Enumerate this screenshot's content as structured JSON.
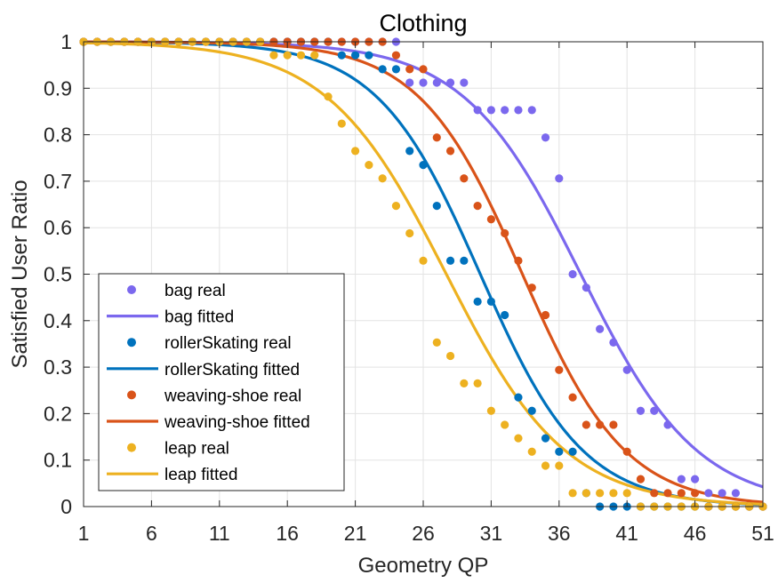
{
  "chart_data": {
    "type": "line",
    "title": "Clothing",
    "xlabel": "Geometry QP",
    "ylabel": "Satisfied User Ratio",
    "xlim": [
      1,
      51
    ],
    "ylim": [
      0,
      1
    ],
    "xticks": [
      1,
      6,
      11,
      16,
      21,
      26,
      31,
      36,
      41,
      46,
      51
    ],
    "xtick_labels": [
      "1",
      "6",
      "11",
      "16",
      "21",
      "26",
      "31",
      "36",
      "41",
      "46",
      "51"
    ],
    "yticks": [
      0,
      0.1,
      0.2,
      0.3,
      0.4,
      0.5,
      0.6,
      0.7,
      0.8,
      0.9,
      1
    ],
    "ytick_labels": [
      "0",
      "0.1",
      "0.2",
      "0.3",
      "0.4",
      "0.5",
      "0.6",
      "0.7",
      "0.8",
      "0.9",
      "1"
    ],
    "grid": true,
    "legend_position": "bottom-left",
    "series": [
      {
        "name": "bag",
        "real_label": "bag real",
        "fitted_label": "bag fitted",
        "color": "#7B68EE",
        "fit": {
          "mu": 37.6,
          "sigma": 4.3
        },
        "real": [
          [
            1,
            1
          ],
          [
            2,
            1
          ],
          [
            3,
            1
          ],
          [
            4,
            1
          ],
          [
            5,
            1
          ],
          [
            6,
            1
          ],
          [
            7,
            1
          ],
          [
            8,
            1
          ],
          [
            9,
            1
          ],
          [
            10,
            1
          ],
          [
            11,
            1
          ],
          [
            12,
            1
          ],
          [
            13,
            1
          ],
          [
            14,
            1
          ],
          [
            15,
            1
          ],
          [
            16,
            1
          ],
          [
            17,
            1
          ],
          [
            18,
            1
          ],
          [
            19,
            1
          ],
          [
            20,
            1
          ],
          [
            21,
            1
          ],
          [
            22,
            1
          ],
          [
            23,
            1
          ],
          [
            24,
            1
          ],
          [
            25,
            0.912
          ],
          [
            26,
            0.912
          ],
          [
            27,
            0.912
          ],
          [
            28,
            0.912
          ],
          [
            29,
            0.912
          ],
          [
            30,
            0.853
          ],
          [
            31,
            0.853
          ],
          [
            32,
            0.853
          ],
          [
            33,
            0.853
          ],
          [
            34,
            0.853
          ],
          [
            35,
            0.794
          ],
          [
            36,
            0.706
          ],
          [
            37,
            0.5
          ],
          [
            38,
            0.471
          ],
          [
            39,
            0.382
          ],
          [
            40,
            0.353
          ],
          [
            41,
            0.294
          ],
          [
            42,
            0.206
          ],
          [
            43,
            0.206
          ],
          [
            44,
            0.176
          ],
          [
            45,
            0.059
          ],
          [
            46,
            0.059
          ],
          [
            47,
            0.029
          ],
          [
            48,
            0.029
          ],
          [
            49,
            0.029
          ],
          [
            50,
            0
          ],
          [
            51,
            0
          ]
        ]
      },
      {
        "name": "rollerSkating",
        "real_label": "rollerSkating real",
        "fitted_label": "rollerSkating fitted",
        "color": "#0072BD",
        "fit": {
          "mu": 30.2,
          "sigma": 3.8
        },
        "real": [
          [
            1,
            1
          ],
          [
            2,
            1
          ],
          [
            3,
            1
          ],
          [
            4,
            1
          ],
          [
            5,
            1
          ],
          [
            6,
            1
          ],
          [
            7,
            1
          ],
          [
            8,
            1
          ],
          [
            9,
            1
          ],
          [
            10,
            1
          ],
          [
            11,
            1
          ],
          [
            12,
            1
          ],
          [
            13,
            1
          ],
          [
            14,
            1
          ],
          [
            15,
            1
          ],
          [
            16,
            1
          ],
          [
            17,
            1
          ],
          [
            18,
            1
          ],
          [
            19,
            1
          ],
          [
            20,
            0.971
          ],
          [
            21,
            0.971
          ],
          [
            22,
            0.971
          ],
          [
            23,
            0.941
          ],
          [
            24,
            0.941
          ],
          [
            25,
            0.765
          ],
          [
            26,
            0.735
          ],
          [
            27,
            0.647
          ],
          [
            28,
            0.529
          ],
          [
            29,
            0.529
          ],
          [
            30,
            0.441
          ],
          [
            31,
            0.441
          ],
          [
            32,
            0.412
          ],
          [
            33,
            0.235
          ],
          [
            34,
            0.206
          ],
          [
            35,
            0.147
          ],
          [
            36,
            0.118
          ],
          [
            37,
            0.118
          ],
          [
            38,
            0.029
          ],
          [
            39,
            0
          ],
          [
            40,
            0
          ],
          [
            41,
            0
          ],
          [
            42,
            0
          ],
          [
            43,
            0
          ],
          [
            44,
            0
          ],
          [
            45,
            0
          ],
          [
            46,
            0
          ],
          [
            47,
            0
          ],
          [
            48,
            0
          ],
          [
            49,
            0
          ],
          [
            50,
            0
          ],
          [
            51,
            0
          ]
        ]
      },
      {
        "name": "weaving-shoe",
        "real_label": "weaving-shoe real",
        "fitted_label": "weaving-shoe fitted",
        "color": "#D95319",
        "fit": {
          "mu": 33.3,
          "sigma": 3.8
        },
        "real": [
          [
            1,
            1
          ],
          [
            2,
            1
          ],
          [
            3,
            1
          ],
          [
            4,
            1
          ],
          [
            5,
            1
          ],
          [
            6,
            1
          ],
          [
            7,
            1
          ],
          [
            8,
            1
          ],
          [
            9,
            1
          ],
          [
            10,
            1
          ],
          [
            11,
            1
          ],
          [
            12,
            1
          ],
          [
            13,
            1
          ],
          [
            14,
            1
          ],
          [
            15,
            1
          ],
          [
            16,
            1
          ],
          [
            17,
            1
          ],
          [
            18,
            1
          ],
          [
            19,
            1
          ],
          [
            20,
            1
          ],
          [
            21,
            1
          ],
          [
            22,
            1
          ],
          [
            23,
            1
          ],
          [
            24,
            0.971
          ],
          [
            25,
            0.941
          ],
          [
            26,
            0.941
          ],
          [
            27,
            0.794
          ],
          [
            28,
            0.765
          ],
          [
            29,
            0.706
          ],
          [
            30,
            0.647
          ],
          [
            31,
            0.618
          ],
          [
            32,
            0.588
          ],
          [
            33,
            0.529
          ],
          [
            34,
            0.471
          ],
          [
            35,
            0.412
          ],
          [
            36,
            0.294
          ],
          [
            37,
            0.235
          ],
          [
            38,
            0.176
          ],
          [
            39,
            0.176
          ],
          [
            40,
            0.176
          ],
          [
            41,
            0.118
          ],
          [
            42,
            0.059
          ],
          [
            43,
            0.029
          ],
          [
            44,
            0.029
          ],
          [
            45,
            0.029
          ],
          [
            46,
            0.029
          ],
          [
            47,
            0
          ],
          [
            48,
            0
          ],
          [
            49,
            0
          ],
          [
            50,
            0
          ],
          [
            51,
            0
          ]
        ]
      },
      {
        "name": "leap",
        "real_label": "leap real",
        "fitted_label": "leap fitted",
        "color": "#EDB120",
        "fit": {
          "mu": 27.7,
          "sigma": 4.4
        },
        "real": [
          [
            1,
            1
          ],
          [
            2,
            1
          ],
          [
            3,
            1
          ],
          [
            4,
            1
          ],
          [
            5,
            1
          ],
          [
            6,
            1
          ],
          [
            7,
            1
          ],
          [
            8,
            1
          ],
          [
            9,
            1
          ],
          [
            10,
            1
          ],
          [
            11,
            1
          ],
          [
            12,
            1
          ],
          [
            13,
            1
          ],
          [
            14,
            1
          ],
          [
            15,
            0.971
          ],
          [
            16,
            0.971
          ],
          [
            17,
            0.971
          ],
          [
            18,
            0.971
          ],
          [
            19,
            0.882
          ],
          [
            20,
            0.824
          ],
          [
            21,
            0.765
          ],
          [
            22,
            0.735
          ],
          [
            23,
            0.706
          ],
          [
            24,
            0.647
          ],
          [
            25,
            0.588
          ],
          [
            26,
            0.529
          ],
          [
            27,
            0.353
          ],
          [
            28,
            0.324
          ],
          [
            29,
            0.265
          ],
          [
            30,
            0.265
          ],
          [
            31,
            0.206
          ],
          [
            32,
            0.176
          ],
          [
            33,
            0.147
          ],
          [
            34,
            0.118
          ],
          [
            35,
            0.088
          ],
          [
            36,
            0.088
          ],
          [
            37,
            0.029
          ],
          [
            38,
            0.029
          ],
          [
            39,
            0.029
          ],
          [
            40,
            0.029
          ],
          [
            41,
            0.029
          ],
          [
            42,
            0
          ],
          [
            43,
            0
          ],
          [
            44,
            0
          ],
          [
            45,
            0
          ],
          [
            46,
            0
          ],
          [
            47,
            0
          ],
          [
            48,
            0
          ],
          [
            49,
            0
          ],
          [
            50,
            0
          ],
          [
            51,
            0
          ]
        ]
      }
    ]
  }
}
